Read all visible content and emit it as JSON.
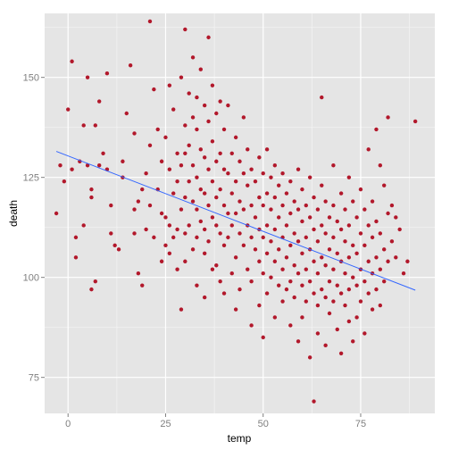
{
  "chart_data": {
    "type": "scatter",
    "title": "",
    "xlabel": "temp",
    "ylabel": "death",
    "xlim": [
      -6,
      94
    ],
    "ylim": [
      66,
      166
    ],
    "x_ticks": [
      0,
      25,
      50,
      75
    ],
    "y_ticks": [
      75,
      100,
      125,
      150
    ],
    "x_tick_labels": [
      "0",
      "25",
      "50",
      "75"
    ],
    "y_tick_labels": [
      "75",
      "100",
      "125",
      "150"
    ],
    "grid": true,
    "legend": "none",
    "colors": {
      "panel": "#e5e5e5",
      "grid_major": "#ffffff",
      "grid_minor": "#f2f2f2",
      "point": "#b2182b",
      "trend": "#3366ff"
    },
    "trend_line": {
      "x": [
        -3,
        89
      ],
      "y": [
        131.5,
        96.8
      ]
    },
    "series": [
      {
        "marker": "circle",
        "points": [
          [
            -3,
            116
          ],
          [
            -2,
            128
          ],
          [
            -1,
            124
          ],
          [
            0,
            142
          ],
          [
            1,
            154
          ],
          [
            1,
            127
          ],
          [
            2,
            110
          ],
          [
            2,
            105
          ],
          [
            3,
            129
          ],
          [
            4,
            113
          ],
          [
            4,
            138
          ],
          [
            5,
            128
          ],
          [
            5,
            150
          ],
          [
            6,
            120
          ],
          [
            6,
            122
          ],
          [
            6,
            97
          ],
          [
            7,
            138
          ],
          [
            7,
            99
          ],
          [
            8,
            128
          ],
          [
            8,
            144
          ],
          [
            9,
            131
          ],
          [
            10,
            151
          ],
          [
            10,
            127
          ],
          [
            11,
            118
          ],
          [
            11,
            111
          ],
          [
            12,
            108
          ],
          [
            13,
            107
          ],
          [
            14,
            125
          ],
          [
            14,
            129
          ],
          [
            15,
            141
          ],
          [
            16,
            153
          ],
          [
            17,
            136
          ],
          [
            17,
            111
          ],
          [
            17,
            117
          ],
          [
            18,
            119
          ],
          [
            18,
            101
          ],
          [
            19,
            122
          ],
          [
            19,
            98
          ],
          [
            20,
            126
          ],
          [
            20,
            112
          ],
          [
            21,
            164
          ],
          [
            21,
            133
          ],
          [
            21,
            118
          ],
          [
            22,
            147
          ],
          [
            22,
            110
          ],
          [
            23,
            137
          ],
          [
            23,
            122
          ],
          [
            24,
            129
          ],
          [
            24,
            116
          ],
          [
            24,
            104
          ],
          [
            25,
            135
          ],
          [
            25,
            115
          ],
          [
            25,
            108
          ],
          [
            26,
            148
          ],
          [
            26,
            127
          ],
          [
            26,
            113
          ],
          [
            26,
            106
          ],
          [
            27,
            142
          ],
          [
            27,
            121
          ],
          [
            27,
            110
          ],
          [
            28,
            131
          ],
          [
            28,
            124
          ],
          [
            28,
            112
          ],
          [
            28,
            102
          ],
          [
            29,
            150
          ],
          [
            29,
            128
          ],
          [
            29,
            117
          ],
          [
            29,
            92
          ],
          [
            30,
            162
          ],
          [
            30,
            138
          ],
          [
            30,
            131
          ],
          [
            30,
            120
          ],
          [
            30,
            111
          ],
          [
            30,
            104
          ],
          [
            31,
            146
          ],
          [
            31,
            133
          ],
          [
            31,
            124
          ],
          [
            31,
            113
          ],
          [
            32,
            155
          ],
          [
            32,
            140
          ],
          [
            32,
            128
          ],
          [
            32,
            119
          ],
          [
            32,
            107
          ],
          [
            33,
            145
          ],
          [
            33,
            137
          ],
          [
            33,
            125
          ],
          [
            33,
            117
          ],
          [
            33,
            110
          ],
          [
            33,
            98
          ],
          [
            34,
            152
          ],
          [
            34,
            132
          ],
          [
            34,
            122
          ],
          [
            34,
            114
          ],
          [
            35,
            143
          ],
          [
            35,
            130
          ],
          [
            35,
            121
          ],
          [
            35,
            112
          ],
          [
            35,
            106
          ],
          [
            35,
            95
          ],
          [
            36,
            160
          ],
          [
            36,
            139
          ],
          [
            36,
            127
          ],
          [
            36,
            118
          ],
          [
            36,
            109
          ],
          [
            37,
            148
          ],
          [
            37,
            134
          ],
          [
            37,
            124
          ],
          [
            37,
            115
          ],
          [
            37,
            102
          ],
          [
            38,
            141
          ],
          [
            38,
            129
          ],
          [
            38,
            120
          ],
          [
            38,
            113
          ],
          [
            38,
            103
          ],
          [
            39,
            144
          ],
          [
            39,
            131
          ],
          [
            39,
            122
          ],
          [
            39,
            111
          ],
          [
            39,
            99
          ],
          [
            40,
            137
          ],
          [
            40,
            127
          ],
          [
            40,
            118
          ],
          [
            40,
            108
          ],
          [
            40,
            96
          ],
          [
            41,
            143
          ],
          [
            41,
            126
          ],
          [
            41,
            116
          ],
          [
            41,
            110
          ],
          [
            42,
            131
          ],
          [
            42,
            121
          ],
          [
            42,
            113
          ],
          [
            42,
            101
          ],
          [
            43,
            135
          ],
          [
            43,
            124
          ],
          [
            43,
            116
          ],
          [
            43,
            105
          ],
          [
            43,
            92
          ],
          [
            44,
            129
          ],
          [
            44,
            119
          ],
          [
            44,
            111
          ],
          [
            44,
            97
          ],
          [
            45,
            140
          ],
          [
            45,
            126
          ],
          [
            45,
            117
          ],
          [
            45,
            108
          ],
          [
            46,
            132
          ],
          [
            46,
            123
          ],
          [
            46,
            113
          ],
          [
            46,
            102
          ],
          [
            47,
            127
          ],
          [
            47,
            118
          ],
          [
            47,
            110
          ],
          [
            47,
            99
          ],
          [
            47,
            88
          ],
          [
            48,
            124
          ],
          [
            48,
            115
          ],
          [
            48,
            107
          ],
          [
            49,
            130
          ],
          [
            49,
            120
          ],
          [
            49,
            112
          ],
          [
            49,
            104
          ],
          [
            49,
            93
          ],
          [
            50,
            126
          ],
          [
            50,
            118
          ],
          [
            50,
            110
          ],
          [
            50,
            101
          ],
          [
            50,
            85
          ],
          [
            51,
            132
          ],
          [
            51,
            121
          ],
          [
            51,
            113
          ],
          [
            51,
            106
          ],
          [
            51,
            96
          ],
          [
            52,
            125
          ],
          [
            52,
            117
          ],
          [
            52,
            109
          ],
          [
            52,
            100
          ],
          [
            53,
            128
          ],
          [
            53,
            120
          ],
          [
            53,
            112
          ],
          [
            53,
            104
          ],
          [
            53,
            90
          ],
          [
            54,
            123
          ],
          [
            54,
            115
          ],
          [
            54,
            107
          ],
          [
            54,
            98
          ],
          [
            55,
            126
          ],
          [
            55,
            118
          ],
          [
            55,
            110
          ],
          [
            55,
            102
          ],
          [
            55,
            94
          ],
          [
            56,
            121
          ],
          [
            56,
            113
          ],
          [
            56,
            105
          ],
          [
            56,
            97
          ],
          [
            57,
            124
          ],
          [
            57,
            116
          ],
          [
            57,
            108
          ],
          [
            57,
            99
          ],
          [
            57,
            88
          ],
          [
            58,
            119
          ],
          [
            58,
            111
          ],
          [
            58,
            103
          ],
          [
            58,
            95
          ],
          [
            59,
            127
          ],
          [
            59,
            117
          ],
          [
            59,
            109
          ],
          [
            59,
            101
          ],
          [
            59,
            84
          ],
          [
            60,
            122
          ],
          [
            60,
            114
          ],
          [
            60,
            106
          ],
          [
            60,
            98
          ],
          [
            60,
            90
          ],
          [
            61,
            118
          ],
          [
            61,
            110
          ],
          [
            61,
            102
          ],
          [
            61,
            94
          ],
          [
            62,
            125
          ],
          [
            62,
            115
          ],
          [
            62,
            107
          ],
          [
            62,
            99
          ],
          [
            62,
            80
          ],
          [
            63,
            120
          ],
          [
            63,
            112
          ],
          [
            63,
            104
          ],
          [
            63,
            96
          ],
          [
            63,
            69
          ],
          [
            64,
            117
          ],
          [
            64,
            109
          ],
          [
            64,
            101
          ],
          [
            64,
            93
          ],
          [
            64,
            86
          ],
          [
            65,
            145
          ],
          [
            65,
            123
          ],
          [
            65,
            113
          ],
          [
            65,
            105
          ],
          [
            65,
            97
          ],
          [
            66,
            119
          ],
          [
            66,
            111
          ],
          [
            66,
            103
          ],
          [
            66,
            95
          ],
          [
            66,
            83
          ],
          [
            67,
            115
          ],
          [
            67,
            107
          ],
          [
            67,
            99
          ],
          [
            67,
            91
          ],
          [
            68,
            128
          ],
          [
            68,
            118
          ],
          [
            68,
            110
          ],
          [
            68,
            102
          ],
          [
            68,
            94
          ],
          [
            69,
            114
          ],
          [
            69,
            106
          ],
          [
            69,
            98
          ],
          [
            69,
            87
          ],
          [
            70,
            121
          ],
          [
            70,
            112
          ],
          [
            70,
            104
          ],
          [
            70,
            96
          ],
          [
            70,
            81
          ],
          [
            71,
            117
          ],
          [
            71,
            109
          ],
          [
            71,
            101
          ],
          [
            71,
            93
          ],
          [
            72,
            125
          ],
          [
            72,
            113
          ],
          [
            72,
            105
          ],
          [
            72,
            97
          ],
          [
            72,
            89
          ],
          [
            73,
            119
          ],
          [
            73,
            108
          ],
          [
            73,
            100
          ],
          [
            73,
            84
          ],
          [
            74,
            115
          ],
          [
            74,
            106
          ],
          [
            74,
            98
          ],
          [
            74,
            90
          ],
          [
            75,
            122
          ],
          [
            75,
            111
          ],
          [
            75,
            102
          ],
          [
            75,
            94
          ],
          [
            76,
            117
          ],
          [
            76,
            108
          ],
          [
            76,
            99
          ],
          [
            76,
            86
          ],
          [
            77,
            132
          ],
          [
            77,
            113
          ],
          [
            77,
            104
          ],
          [
            77,
            96
          ],
          [
            78,
            119
          ],
          [
            78,
            110
          ],
          [
            78,
            101
          ],
          [
            78,
            92
          ],
          [
            79,
            137
          ],
          [
            79,
            114
          ],
          [
            79,
            105
          ],
          [
            79,
            97
          ],
          [
            80,
            128
          ],
          [
            80,
            111
          ],
          [
            80,
            102
          ],
          [
            80,
            93
          ],
          [
            81,
            123
          ],
          [
            81,
            107
          ],
          [
            81,
            99
          ],
          [
            82,
            140
          ],
          [
            82,
            116
          ],
          [
            82,
            104
          ],
          [
            83,
            118
          ],
          [
            83,
            109
          ],
          [
            84,
            115
          ],
          [
            84,
            105
          ],
          [
            85,
            112
          ],
          [
            86,
            101
          ],
          [
            87,
            104
          ],
          [
            89,
            139
          ]
        ]
      }
    ]
  }
}
